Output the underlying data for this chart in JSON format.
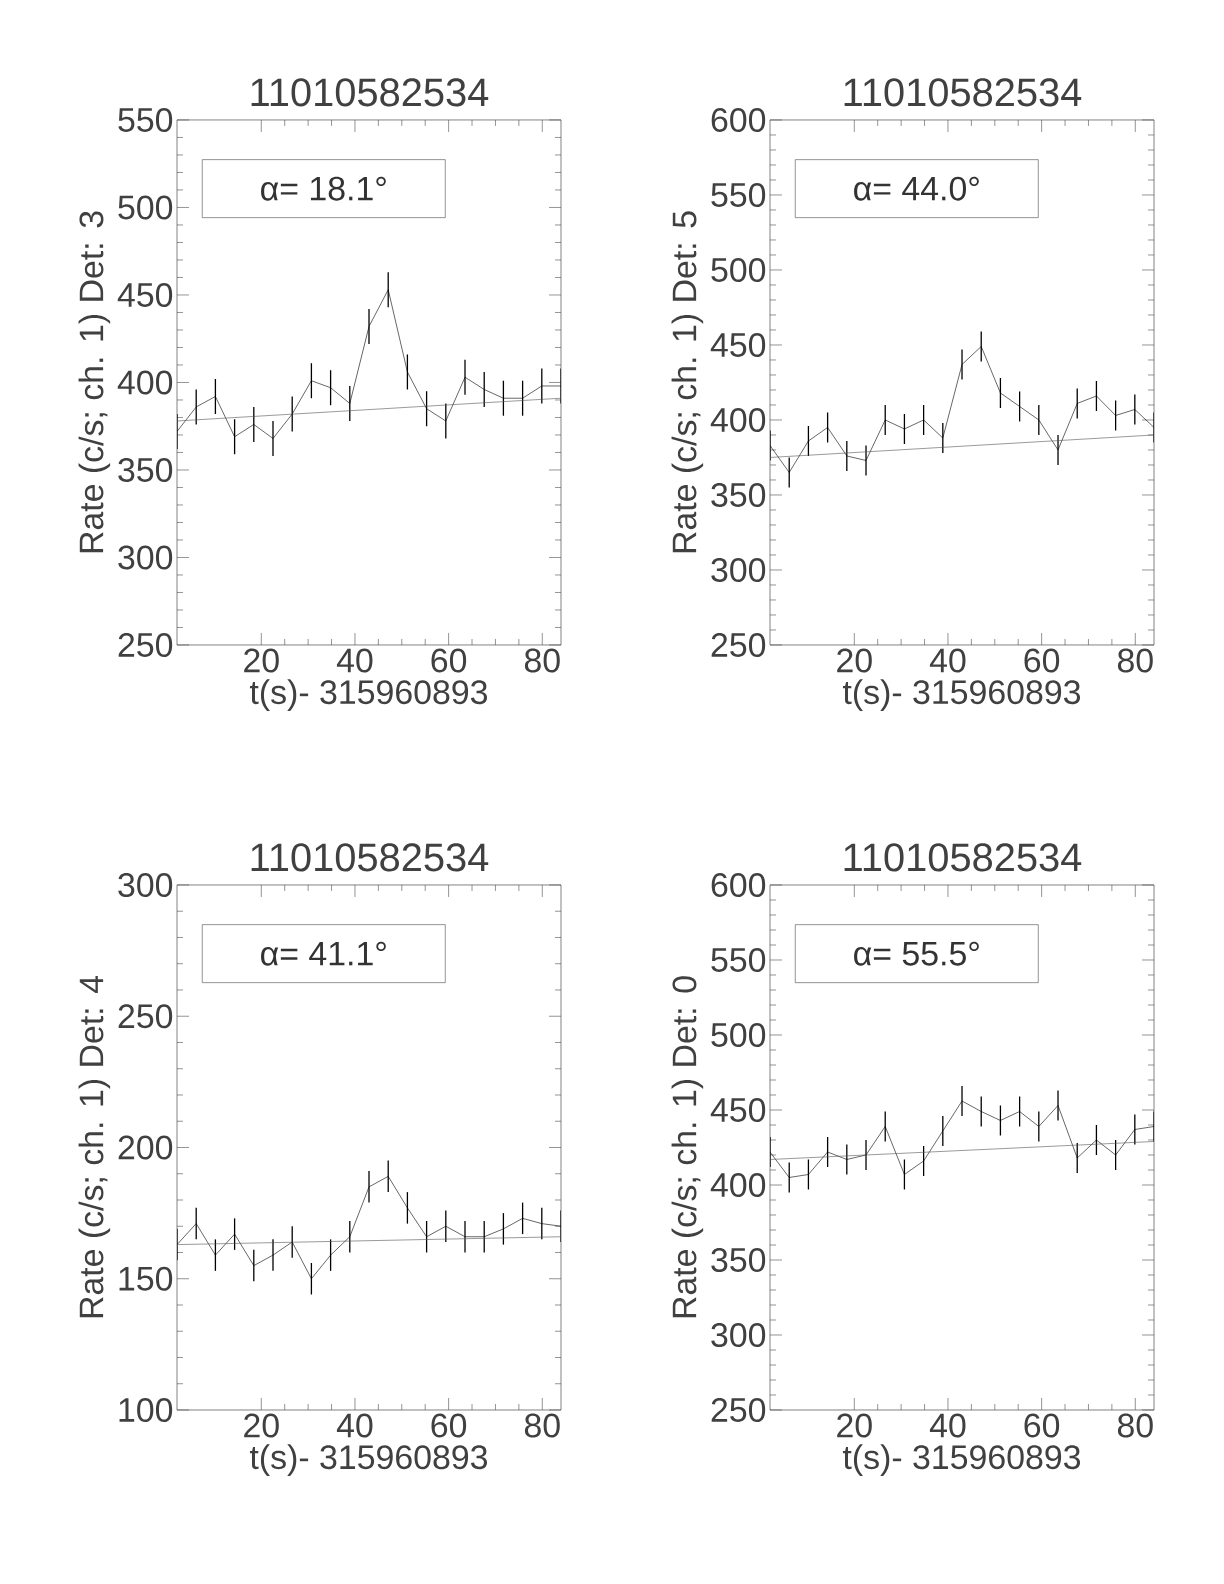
{
  "chart_data": [
    {
      "type": "line",
      "title": "11010582534",
      "xlabel": "t(s)- 315960893",
      "ylabel": "Rate (c/s; ch. 1) Det: 3",
      "annotations": [
        "α= 18.1°"
      ],
      "xlim": [
        2,
        84
      ],
      "ylim": [
        250,
        550
      ],
      "xticks": [
        20,
        40,
        60,
        80
      ],
      "yticks": [
        250,
        300,
        350,
        400,
        450,
        500,
        550
      ],
      "series": [
        {
          "color": "#000000",
          "x": [
            2.0,
            6.1,
            10.2,
            14.3,
            18.4,
            22.5,
            26.6,
            30.7,
            34.8,
            38.9,
            43.0,
            47.1,
            51.2,
            55.3,
            59.4,
            63.5,
            67.6,
            71.7,
            75.8,
            79.9,
            84.0
          ],
          "values": [
            372,
            386,
            392,
            369,
            376,
            368,
            382,
            401,
            397,
            388,
            432,
            453,
            406,
            385,
            378,
            403,
            396,
            391,
            391,
            398,
            398
          ],
          "errors": [
            10,
            10,
            10,
            10,
            10,
            10,
            10,
            10,
            10,
            10,
            10,
            10,
            10,
            10,
            10,
            10,
            10,
            10,
            10,
            10,
            10
          ]
        },
        {
          "type": "line",
          "color": "#555555",
          "x": [
            2,
            84
          ],
          "values": [
            378,
            391
          ]
        }
      ]
    },
    {
      "type": "line",
      "title": "11010582534",
      "xlabel": "t(s)- 315960893",
      "ylabel": "Rate (c/s; ch. 1) Det: 5",
      "annotations": [
        "α= 44.0°"
      ],
      "xlim": [
        2,
        84
      ],
      "ylim": [
        250,
        600
      ],
      "xticks": [
        20,
        40,
        60,
        80
      ],
      "yticks": [
        250,
        300,
        350,
        400,
        450,
        500,
        550,
        600
      ],
      "series": [
        {
          "color": "#000000",
          "x": [
            2.0,
            6.1,
            10.2,
            14.3,
            18.4,
            22.5,
            26.6,
            30.7,
            34.8,
            38.9,
            43.0,
            47.1,
            51.2,
            55.3,
            59.4,
            63.5,
            67.6,
            71.7,
            75.8,
            79.9,
            84.0
          ],
          "values": [
            383,
            365,
            386,
            395,
            376,
            373,
            400,
            394,
            400,
            388,
            437,
            449,
            418,
            409,
            400,
            380,
            411,
            416,
            403,
            407,
            395
          ],
          "errors": [
            10,
            10,
            10,
            10,
            10,
            10,
            10,
            10,
            10,
            10,
            10,
            10,
            10,
            10,
            10,
            10,
            10,
            10,
            10,
            10,
            10
          ]
        },
        {
          "type": "line",
          "color": "#555555",
          "x": [
            2,
            84
          ],
          "values": [
            375,
            390
          ]
        }
      ]
    },
    {
      "type": "line",
      "title": "11010582534",
      "xlabel": "t(s)- 315960893",
      "ylabel": "Rate (c/s; ch. 1) Det: 4",
      "annotations": [
        "α= 41.1°"
      ],
      "xlim": [
        2,
        84
      ],
      "ylim": [
        100,
        300
      ],
      "xticks": [
        20,
        40,
        60,
        80
      ],
      "yticks": [
        100,
        150,
        200,
        250,
        300
      ],
      "series": [
        {
          "color": "#000000",
          "x": [
            2.0,
            6.1,
            10.2,
            14.3,
            18.4,
            22.5,
            26.6,
            30.7,
            34.8,
            38.9,
            43.0,
            47.1,
            51.2,
            55.3,
            59.4,
            63.5,
            67.6,
            71.7,
            75.8,
            79.9,
            84.0
          ],
          "values": [
            163,
            171,
            159,
            167,
            155,
            159,
            164,
            150,
            159,
            166,
            185,
            189,
            177,
            166,
            170,
            166,
            166,
            169,
            173,
            171,
            170
          ],
          "errors": [
            6,
            6,
            6,
            6,
            6,
            6,
            6,
            6,
            6,
            6,
            6,
            6,
            6,
            6,
            6,
            6,
            6,
            6,
            6,
            6,
            6
          ]
        },
        {
          "type": "line",
          "color": "#555555",
          "x": [
            2,
            84
          ],
          "values": [
            163,
            166
          ]
        }
      ]
    },
    {
      "type": "line",
      "title": "11010582534",
      "xlabel": "t(s)- 315960893",
      "ylabel": "Rate (c/s; ch. 1) Det: 0",
      "annotations": [
        "α= 55.5°"
      ],
      "xlim": [
        2,
        84
      ],
      "ylim": [
        250,
        600
      ],
      "xticks": [
        20,
        40,
        60,
        80
      ],
      "yticks": [
        250,
        300,
        350,
        400,
        450,
        500,
        550,
        600
      ],
      "series": [
        {
          "color": "#000000",
          "x": [
            2.0,
            6.1,
            10.2,
            14.3,
            18.4,
            22.5,
            26.6,
            30.7,
            34.8,
            38.9,
            43.0,
            47.1,
            51.2,
            55.3,
            59.4,
            63.5,
            67.6,
            71.7,
            75.8,
            79.9,
            84.0
          ],
          "values": [
            422,
            405,
            407,
            422,
            417,
            420,
            439,
            407,
            416,
            436,
            456,
            449,
            443,
            449,
            439,
            453,
            418,
            430,
            420,
            437,
            439
          ],
          "errors": [
            10,
            10,
            10,
            10,
            10,
            10,
            10,
            10,
            10,
            10,
            10,
            10,
            10,
            10,
            10,
            10,
            10,
            10,
            10,
            10,
            10
          ]
        },
        {
          "type": "line",
          "color": "#555555",
          "x": [
            2,
            84
          ],
          "values": [
            417,
            429
          ]
        }
      ]
    }
  ]
}
